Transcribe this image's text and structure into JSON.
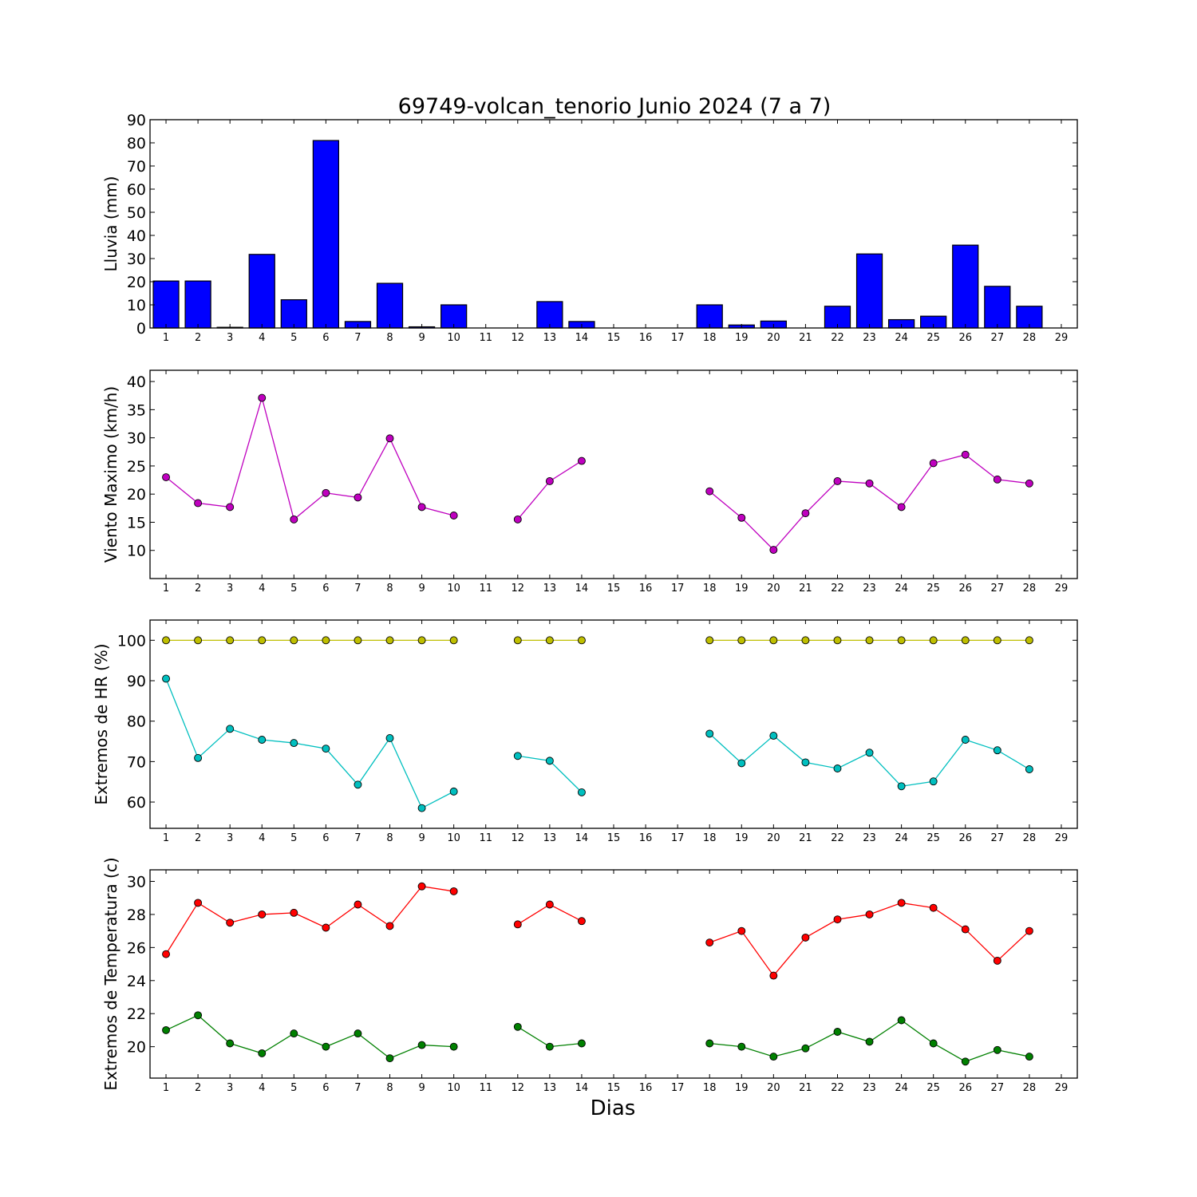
{
  "title": "69749-volcan_tenorio Junio 2024  (7 a 7)",
  "xlabel": "Dias",
  "x_ticks": [
    1,
    2,
    3,
    4,
    5,
    6,
    7,
    8,
    9,
    10,
    11,
    12,
    13,
    14,
    15,
    16,
    17,
    18,
    19,
    20,
    21,
    22,
    23,
    24,
    25,
    26,
    27,
    28,
    29
  ],
  "chart_data": [
    {
      "type": "bar",
      "ylabel": "Lluvia (mm)",
      "ylim": [
        0,
        90
      ],
      "yticks": [
        0,
        10,
        20,
        30,
        40,
        50,
        60,
        70,
        80,
        90
      ],
      "xlim": [
        0.5,
        29.5
      ],
      "series": [
        {
          "color": "#0000ff",
          "x": [
            1,
            2,
            3,
            4,
            5,
            6,
            7,
            8,
            9,
            10,
            11,
            12,
            13,
            14,
            15,
            16,
            17,
            18,
            19,
            20,
            21,
            22,
            23,
            24,
            25,
            26,
            27,
            28
          ],
          "values": [
            20.3,
            20.3,
            0.3,
            31.8,
            12.2,
            81.0,
            2.8,
            19.3,
            0.5,
            10.0,
            0,
            0,
            11.4,
            2.8,
            0,
            0,
            0,
            10.0,
            1.3,
            3.0,
            0,
            9.4,
            32.0,
            3.6,
            5.1,
            35.8,
            18.0,
            9.4
          ]
        }
      ]
    },
    {
      "type": "line",
      "ylabel": "Viento Maximo (km/h)",
      "ylim": [
        5,
        42
      ],
      "yticks": [
        10,
        15,
        20,
        25,
        30,
        35,
        40
      ],
      "xlim": [
        0.5,
        29.5
      ],
      "series": [
        {
          "color": "#bf00bf",
          "x": [
            1,
            2,
            3,
            4,
            5,
            6,
            7,
            8,
            9,
            10,
            11,
            12,
            13,
            14,
            15,
            16,
            17,
            18,
            19,
            20,
            21,
            22,
            23,
            24,
            25,
            26,
            27,
            28
          ],
          "values": [
            23.0,
            18.4,
            17.7,
            37.1,
            15.5,
            20.2,
            19.4,
            29.9,
            17.7,
            16.2,
            null,
            15.5,
            22.3,
            25.9,
            null,
            null,
            null,
            20.5,
            15.8,
            10.1,
            16.6,
            22.3,
            21.9,
            17.7,
            25.5,
            27.0,
            22.6,
            21.9
          ]
        }
      ]
    },
    {
      "type": "line",
      "ylabel": "Extremos de HR (%)",
      "ylim": [
        53.5,
        105
      ],
      "yticks": [
        60,
        70,
        80,
        90,
        100
      ],
      "xlim": [
        0.5,
        29.5
      ],
      "series": [
        {
          "color": "#bfbf00",
          "x": [
            1,
            2,
            3,
            4,
            5,
            6,
            7,
            8,
            9,
            10,
            11,
            12,
            13,
            14,
            15,
            16,
            17,
            18,
            19,
            20,
            21,
            22,
            23,
            24,
            25,
            26,
            27,
            28
          ],
          "values": [
            100,
            100,
            100,
            100,
            100,
            100,
            100,
            100,
            100,
            100,
            null,
            100,
            100,
            100,
            null,
            null,
            null,
            100,
            100,
            100,
            100,
            100,
            100,
            100,
            100,
            100,
            100,
            100
          ]
        },
        {
          "color": "#00bfbf",
          "x": [
            1,
            2,
            3,
            4,
            5,
            6,
            7,
            8,
            9,
            10,
            11,
            12,
            13,
            14,
            15,
            16,
            17,
            18,
            19,
            20,
            21,
            22,
            23,
            24,
            25,
            26,
            27,
            28
          ],
          "values": [
            90.5,
            70.9,
            78.1,
            75.4,
            74.6,
            73.2,
            64.3,
            75.8,
            58.5,
            62.6,
            null,
            71.4,
            70.2,
            62.4,
            null,
            null,
            null,
            76.9,
            69.6,
            76.4,
            69.8,
            68.3,
            72.2,
            63.9,
            65.1,
            75.4,
            72.8,
            68.1
          ]
        }
      ]
    },
    {
      "type": "line",
      "ylabel": "Extremos de Temperatura (c)",
      "ylim": [
        18.1,
        30.7
      ],
      "yticks": [
        20,
        22,
        24,
        26,
        28,
        30
      ],
      "xlim": [
        0.5,
        29.5
      ],
      "series": [
        {
          "color": "#ff0000",
          "x": [
            1,
            2,
            3,
            4,
            5,
            6,
            7,
            8,
            9,
            10,
            11,
            12,
            13,
            14,
            15,
            16,
            17,
            18,
            19,
            20,
            21,
            22,
            23,
            24,
            25,
            26,
            27,
            28
          ],
          "values": [
            25.6,
            28.7,
            27.5,
            28.0,
            28.1,
            27.2,
            28.6,
            27.3,
            29.7,
            29.4,
            null,
            27.4,
            28.6,
            27.6,
            null,
            null,
            null,
            26.3,
            27.0,
            24.3,
            26.6,
            27.7,
            28.0,
            28.7,
            28.4,
            27.1,
            25.2,
            27.0
          ]
        },
        {
          "color": "#008000",
          "x": [
            1,
            2,
            3,
            4,
            5,
            6,
            7,
            8,
            9,
            10,
            11,
            12,
            13,
            14,
            15,
            16,
            17,
            18,
            19,
            20,
            21,
            22,
            23,
            24,
            25,
            26,
            27,
            28
          ],
          "values": [
            21.0,
            21.9,
            20.2,
            19.6,
            20.8,
            20.0,
            20.8,
            19.3,
            20.1,
            20.0,
            null,
            21.2,
            20.0,
            20.2,
            null,
            null,
            null,
            20.2,
            20.0,
            19.4,
            19.9,
            20.9,
            20.3,
            21.6,
            20.2,
            19.1,
            19.8,
            19.4
          ]
        }
      ]
    }
  ]
}
